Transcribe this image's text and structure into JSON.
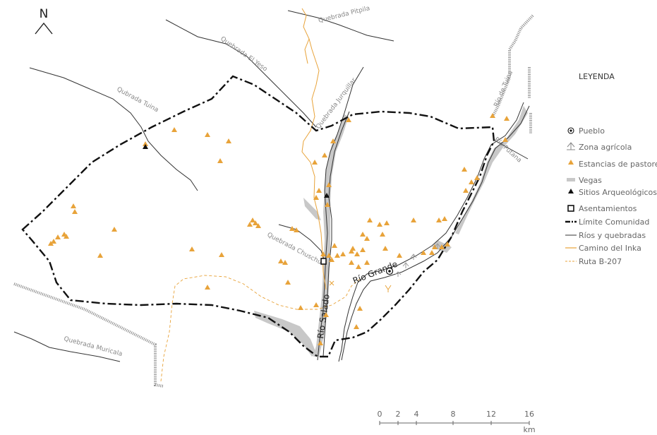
{
  "north": {
    "label": "N"
  },
  "legend": {
    "title": "LEYENDA",
    "items": [
      {
        "key": "pueblo",
        "label": "Pueblo",
        "icon": "town-circle-icon"
      },
      {
        "key": "agricola",
        "label": "Zona agrícola",
        "icon": "agriculture-icon"
      },
      {
        "key": "estancias",
        "label": "Estancias de pastoreo",
        "icon": "orange-triangle-icon",
        "color": "#E8A33A"
      },
      {
        "key": "vegas",
        "label": "Vegas",
        "icon": "grey-band-icon",
        "color": "#C8C8C8"
      },
      {
        "key": "sitios",
        "label": "Sitios Arqueológicos",
        "icon": "black-triangle-icon",
        "color": "#111111"
      },
      {
        "key": "asentamientos",
        "label": "Asentamientos",
        "icon": "square-icon"
      },
      {
        "key": "limite",
        "label": "Límite Comunidad",
        "icon": "dash-dot-line-icon"
      },
      {
        "key": "rios",
        "label": "Ríos y quebradas",
        "icon": "thin-line-icon"
      },
      {
        "key": "inka",
        "label": "Camino del Inka",
        "icon": "orange-line-icon",
        "color": "#E8A33A"
      },
      {
        "key": "ruta",
        "label": "Ruta B-207",
        "icon": "orange-dashed-line-icon",
        "color": "#E8A33A"
      }
    ]
  },
  "labels": {
    "quebrada_pitpila": "Quebrada Pitpila",
    "quebrada_el_yeso": "Quebrada El Yeso",
    "quebrada_tuina": "Qubrada Tuina",
    "quebrada_jurquillar": "Quebrada Jurquillar",
    "rio_de_tuina": "Río de Tuina",
    "rio_putana": "Río Putana",
    "quebrada_chuschul": "Quebrada Chuschul",
    "rio_grande": "Río Grande",
    "rio_salado": "Río Salado",
    "quebrada_muricala": "Quebrada Muricala"
  },
  "scale": {
    "ticks": [
      "0",
      "2",
      "4",
      "8",
      "12",
      "16"
    ],
    "unit": "km"
  },
  "colors": {
    "estancia": "#E8A33A",
    "vegas": "#C8C8C8",
    "river": "#333333",
    "boundary": "#111111",
    "inka": "#E8A33A",
    "highway": "#777777"
  }
}
